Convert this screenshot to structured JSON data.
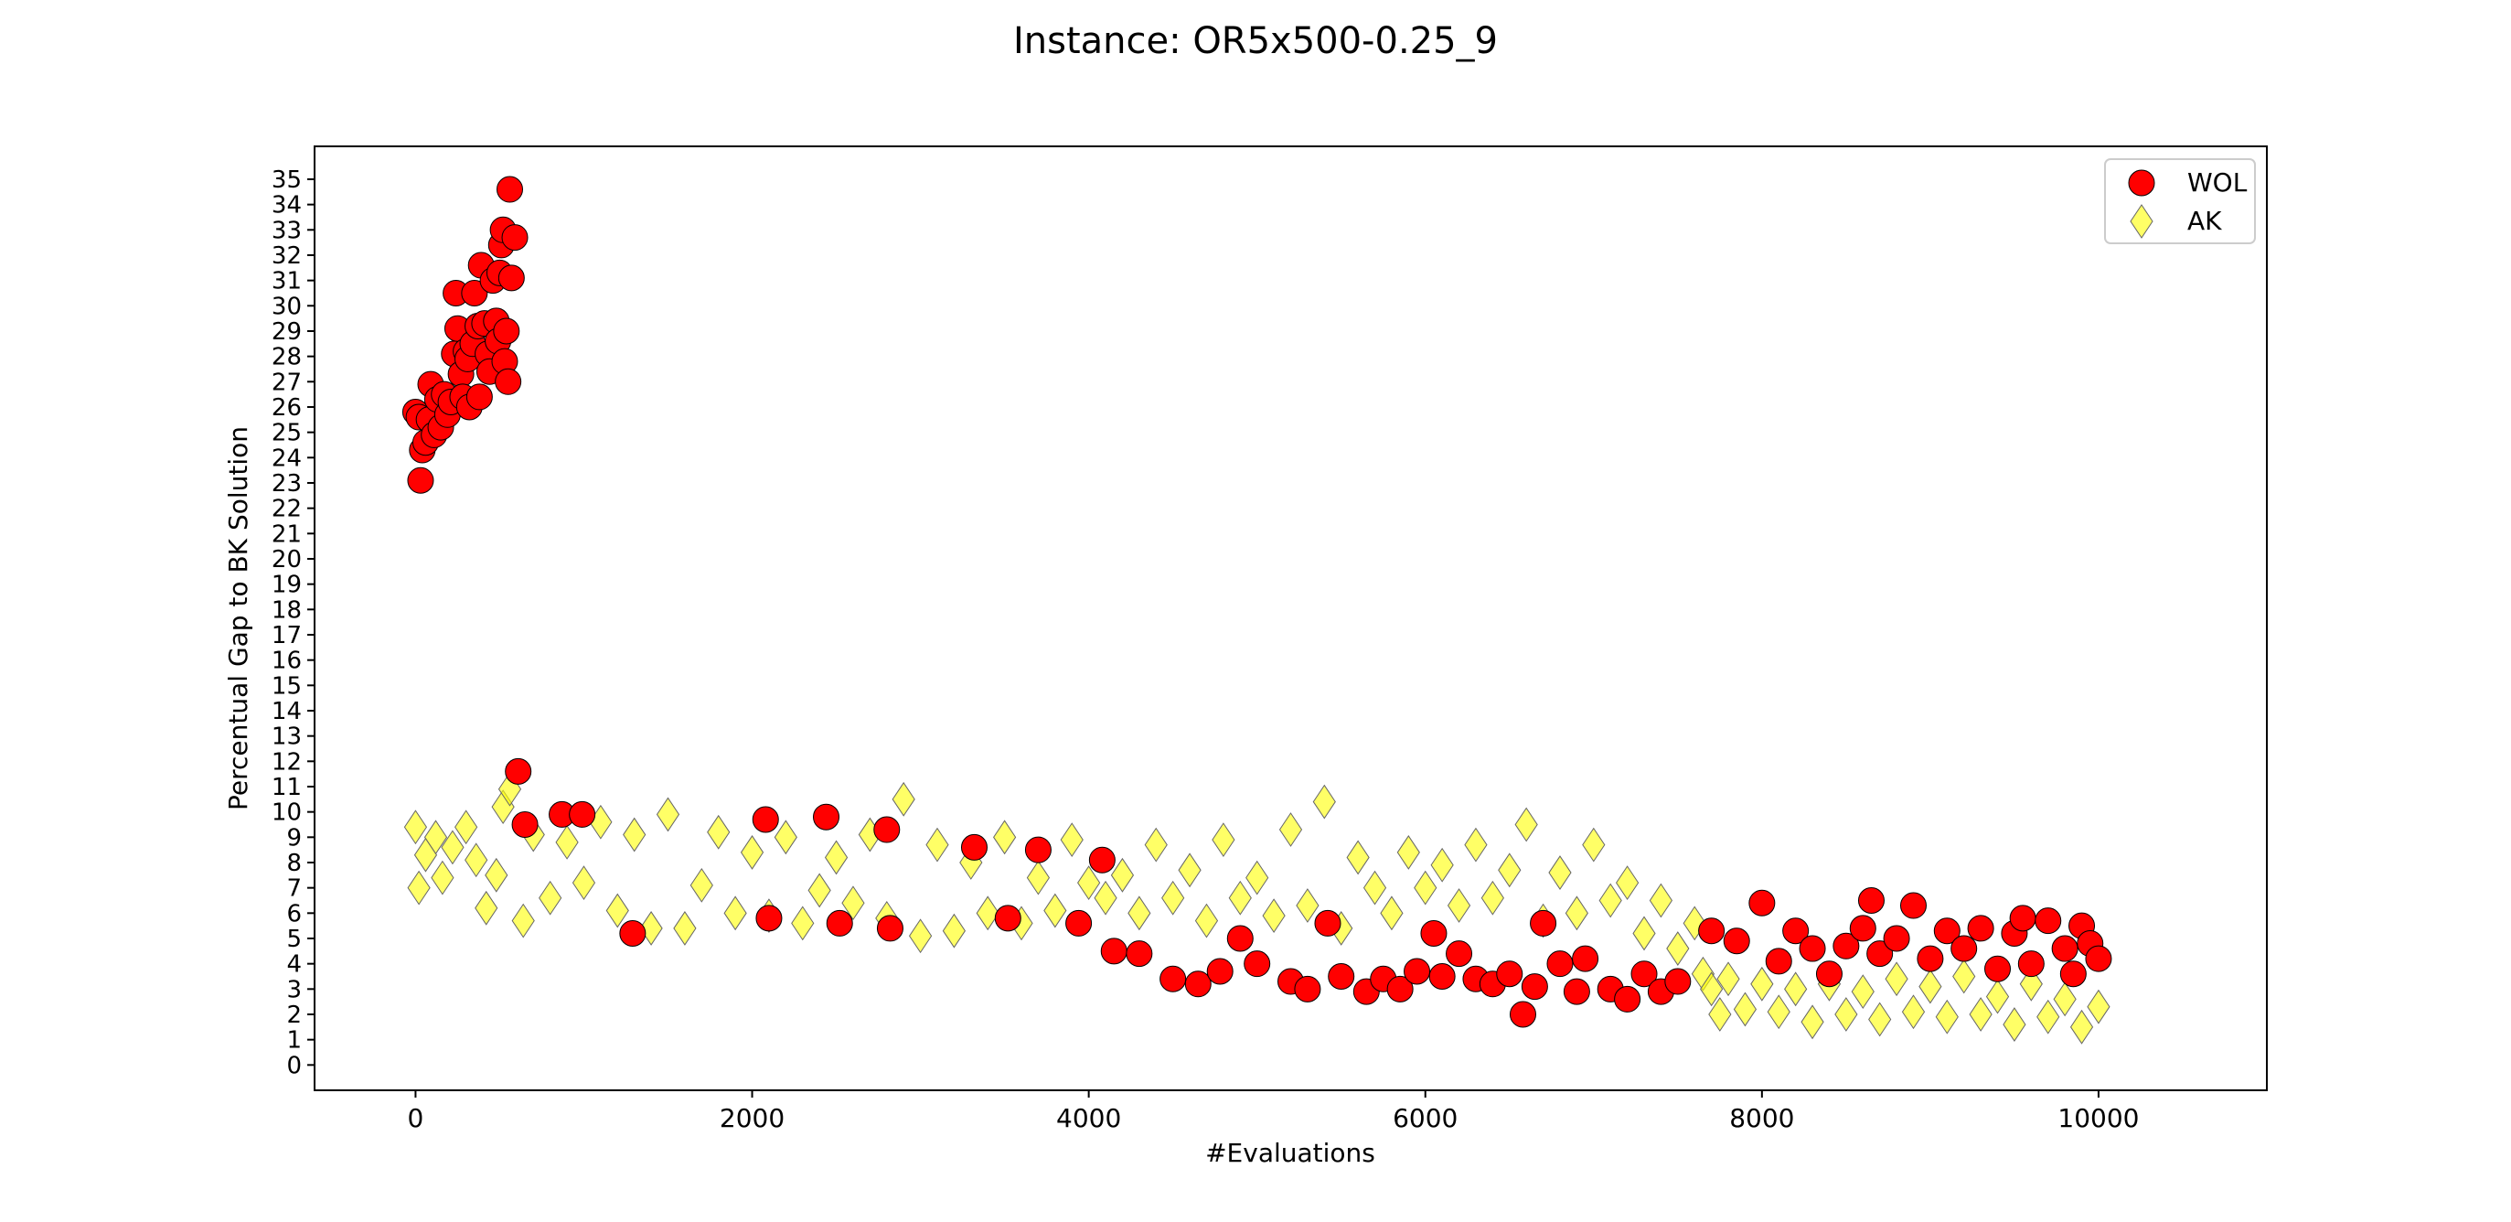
{
  "chart_data": {
    "type": "scatter",
    "title": "Instance: OR5x500-0.25_9",
    "xlabel": "#Evaluations",
    "ylabel": "Percentual Gap to BK Solution",
    "xlim": [
      -600,
      11000
    ],
    "ylim": [
      -1,
      36.3
    ],
    "xticks": [
      0,
      2000,
      4000,
      6000,
      8000,
      10000
    ],
    "yticks": [
      0,
      1,
      2,
      3,
      4,
      5,
      6,
      7,
      8,
      9,
      10,
      11,
      12,
      13,
      14,
      15,
      16,
      17,
      18,
      19,
      20,
      21,
      22,
      23,
      24,
      25,
      26,
      27,
      28,
      29,
      30,
      31,
      32,
      33,
      34,
      35
    ],
    "grid": false,
    "legend_position": "top-right",
    "series": [
      {
        "name": "WOL",
        "marker": "circle",
        "color": "#ff0000",
        "edge_color": "#000000",
        "points": [
          [
            0,
            25.8
          ],
          [
            20,
            25.6
          ],
          [
            30,
            23.1
          ],
          [
            40,
            24.3
          ],
          [
            60,
            24.6
          ],
          [
            80,
            25.5
          ],
          [
            90,
            26.9
          ],
          [
            110,
            24.9
          ],
          [
            130,
            26.3
          ],
          [
            150,
            25.2
          ],
          [
            170,
            26.5
          ],
          [
            190,
            25.7
          ],
          [
            210,
            26.2
          ],
          [
            230,
            28.1
          ],
          [
            240,
            30.5
          ],
          [
            250,
            29.1
          ],
          [
            270,
            27.3
          ],
          [
            280,
            26.4
          ],
          [
            300,
            28.2
          ],
          [
            310,
            27.9
          ],
          [
            320,
            26.0
          ],
          [
            340,
            28.5
          ],
          [
            350,
            30.5
          ],
          [
            370,
            29.2
          ],
          [
            380,
            26.4
          ],
          [
            390,
            31.6
          ],
          [
            410,
            29.3
          ],
          [
            430,
            28.1
          ],
          [
            440,
            27.4
          ],
          [
            460,
            31.0
          ],
          [
            480,
            29.4
          ],
          [
            490,
            28.6
          ],
          [
            500,
            31.3
          ],
          [
            510,
            32.4
          ],
          [
            520,
            33.0
          ],
          [
            530,
            27.8
          ],
          [
            540,
            29.0
          ],
          [
            550,
            27.0
          ],
          [
            560,
            34.6
          ],
          [
            570,
            31.1
          ],
          [
            590,
            32.7
          ],
          [
            610,
            11.6
          ],
          [
            650,
            9.5
          ],
          [
            870,
            9.9
          ],
          [
            990,
            9.9
          ],
          [
            1290,
            5.2
          ],
          [
            2080,
            9.7
          ],
          [
            2100,
            5.8
          ],
          [
            2440,
            9.8
          ],
          [
            2520,
            5.6
          ],
          [
            2800,
            9.3
          ],
          [
            2820,
            5.4
          ],
          [
            3320,
            8.6
          ],
          [
            3520,
            5.8
          ],
          [
            3700,
            8.5
          ],
          [
            3940,
            5.6
          ],
          [
            4080,
            8.1
          ],
          [
            4150,
            4.5
          ],
          [
            4300,
            4.4
          ],
          [
            4500,
            3.4
          ],
          [
            4650,
            3.2
          ],
          [
            4780,
            3.7
          ],
          [
            4900,
            5.0
          ],
          [
            5000,
            4.0
          ],
          [
            5200,
            3.3
          ],
          [
            5300,
            3.0
          ],
          [
            5420,
            5.6
          ],
          [
            5500,
            3.5
          ],
          [
            5650,
            2.9
          ],
          [
            5750,
            3.4
          ],
          [
            5850,
            3.0
          ],
          [
            5950,
            3.7
          ],
          [
            6050,
            5.2
          ],
          [
            6100,
            3.5
          ],
          [
            6200,
            4.4
          ],
          [
            6300,
            3.4
          ],
          [
            6400,
            3.2
          ],
          [
            6500,
            3.6
          ],
          [
            6580,
            2.0
          ],
          [
            6650,
            3.1
          ],
          [
            6700,
            5.6
          ],
          [
            6800,
            4.0
          ],
          [
            6900,
            2.9
          ],
          [
            6950,
            4.2
          ],
          [
            7100,
            3.0
          ],
          [
            7200,
            2.6
          ],
          [
            7300,
            3.6
          ],
          [
            7400,
            2.9
          ],
          [
            7500,
            3.3
          ],
          [
            7700,
            5.3
          ],
          [
            7850,
            4.9
          ],
          [
            8000,
            6.4
          ],
          [
            8100,
            4.1
          ],
          [
            8200,
            5.3
          ],
          [
            8300,
            4.6
          ],
          [
            8400,
            3.6
          ],
          [
            8500,
            4.7
          ],
          [
            8600,
            5.4
          ],
          [
            8650,
            6.5
          ],
          [
            8700,
            4.4
          ],
          [
            8800,
            5.0
          ],
          [
            8900,
            6.3
          ],
          [
            9000,
            4.2
          ],
          [
            9100,
            5.3
          ],
          [
            9200,
            4.6
          ],
          [
            9300,
            5.4
          ],
          [
            9400,
            3.8
          ],
          [
            9500,
            5.2
          ],
          [
            9550,
            5.8
          ],
          [
            9600,
            4.0
          ],
          [
            9700,
            5.7
          ],
          [
            9800,
            4.6
          ],
          [
            9850,
            3.6
          ],
          [
            9900,
            5.5
          ],
          [
            9950,
            4.8
          ],
          [
            10000,
            4.2
          ]
        ]
      },
      {
        "name": "AK",
        "marker": "diamond",
        "color": "#ffff00",
        "edge_color": "#666666",
        "points": [
          [
            0,
            9.4
          ],
          [
            20,
            7.0
          ],
          [
            60,
            8.3
          ],
          [
            120,
            9.0
          ],
          [
            160,
            7.4
          ],
          [
            220,
            8.6
          ],
          [
            300,
            9.4
          ],
          [
            360,
            8.1
          ],
          [
            420,
            6.2
          ],
          [
            480,
            7.5
          ],
          [
            520,
            10.2
          ],
          [
            560,
            10.9
          ],
          [
            640,
            5.7
          ],
          [
            700,
            9.1
          ],
          [
            800,
            6.6
          ],
          [
            900,
            8.8
          ],
          [
            1000,
            7.2
          ],
          [
            1100,
            9.6
          ],
          [
            1200,
            6.1
          ],
          [
            1300,
            9.1
          ],
          [
            1400,
            5.4
          ],
          [
            1500,
            9.9
          ],
          [
            1600,
            5.4
          ],
          [
            1700,
            7.1
          ],
          [
            1800,
            9.2
          ],
          [
            1900,
            6.0
          ],
          [
            2000,
            8.4
          ],
          [
            2100,
            5.9
          ],
          [
            2200,
            9.0
          ],
          [
            2300,
            5.6
          ],
          [
            2400,
            6.9
          ],
          [
            2500,
            8.2
          ],
          [
            2600,
            6.4
          ],
          [
            2700,
            9.1
          ],
          [
            2800,
            5.8
          ],
          [
            2900,
            10.5
          ],
          [
            3000,
            5.1
          ],
          [
            3100,
            8.7
          ],
          [
            3200,
            5.3
          ],
          [
            3300,
            8.0
          ],
          [
            3400,
            6.0
          ],
          [
            3500,
            9.0
          ],
          [
            3600,
            5.6
          ],
          [
            3700,
            7.4
          ],
          [
            3800,
            6.1
          ],
          [
            3900,
            8.9
          ],
          [
            4000,
            7.2
          ],
          [
            4100,
            6.6
          ],
          [
            4200,
            7.5
          ],
          [
            4300,
            6.0
          ],
          [
            4400,
            8.7
          ],
          [
            4500,
            6.6
          ],
          [
            4600,
            7.7
          ],
          [
            4700,
            5.7
          ],
          [
            4800,
            8.9
          ],
          [
            4900,
            6.6
          ],
          [
            5000,
            7.4
          ],
          [
            5100,
            5.9
          ],
          [
            5200,
            9.3
          ],
          [
            5300,
            6.3
          ],
          [
            5400,
            10.4
          ],
          [
            5500,
            5.4
          ],
          [
            5600,
            8.2
          ],
          [
            5700,
            7.0
          ],
          [
            5800,
            6.0
          ],
          [
            5900,
            8.4
          ],
          [
            6000,
            7.0
          ],
          [
            6100,
            7.9
          ],
          [
            6200,
            6.3
          ],
          [
            6300,
            8.7
          ],
          [
            6400,
            6.6
          ],
          [
            6500,
            7.7
          ],
          [
            6600,
            9.5
          ],
          [
            6700,
            5.7
          ],
          [
            6800,
            7.6
          ],
          [
            6900,
            6.0
          ],
          [
            7000,
            8.7
          ],
          [
            7100,
            6.5
          ],
          [
            7200,
            7.2
          ],
          [
            7300,
            5.2
          ],
          [
            7400,
            6.5
          ],
          [
            7500,
            4.6
          ],
          [
            7600,
            5.6
          ],
          [
            7650,
            3.6
          ],
          [
            7700,
            3.0
          ],
          [
            7750,
            2.0
          ],
          [
            7800,
            3.4
          ],
          [
            7900,
            2.2
          ],
          [
            8000,
            3.2
          ],
          [
            8100,
            2.1
          ],
          [
            8200,
            3.0
          ],
          [
            8300,
            1.7
          ],
          [
            8400,
            3.2
          ],
          [
            8500,
            2.0
          ],
          [
            8600,
            2.9
          ],
          [
            8700,
            1.8
          ],
          [
            8800,
            3.4
          ],
          [
            8900,
            2.1
          ],
          [
            9000,
            3.1
          ],
          [
            9100,
            1.9
          ],
          [
            9200,
            3.5
          ],
          [
            9300,
            2.0
          ],
          [
            9400,
            2.7
          ],
          [
            9500,
            1.6
          ],
          [
            9600,
            3.2
          ],
          [
            9700,
            1.9
          ],
          [
            9800,
            2.6
          ],
          [
            9900,
            1.5
          ],
          [
            10000,
            2.3
          ]
        ]
      }
    ]
  }
}
